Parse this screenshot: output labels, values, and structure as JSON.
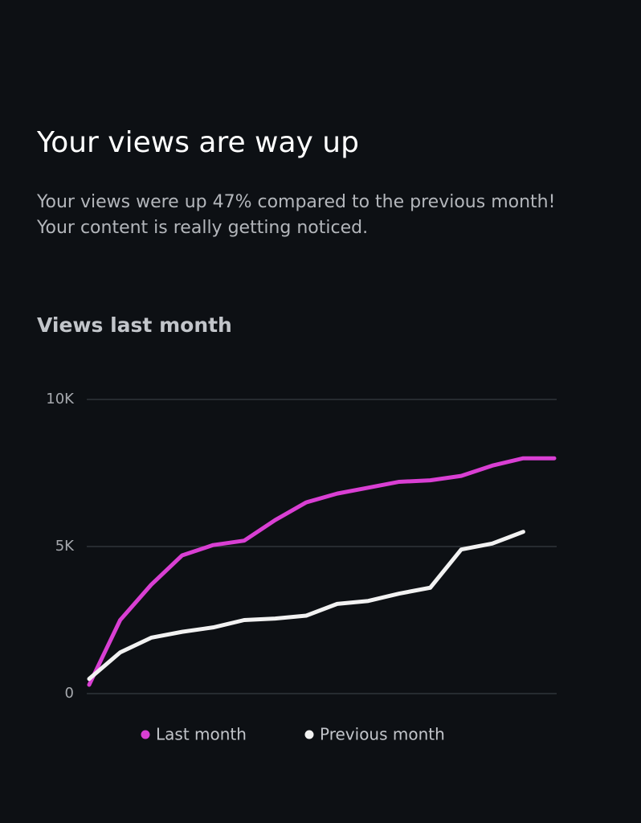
{
  "header": {
    "title": "Your views are way up",
    "description": [
      "Your views were up 47% compared to the previous month!",
      "Your content is really getting noticed."
    ]
  },
  "chart_data": {
    "type": "line",
    "title": "Views last month",
    "categories": [
      null,
      null,
      null,
      null,
      null,
      null,
      null,
      null,
      null,
      null,
      null,
      null,
      null,
      null,
      null,
      null
    ],
    "series": [
      {
        "name": "Last month",
        "color": "#d93fd3",
        "values": [
          300,
          2500,
          3700,
          4700,
          5050,
          5200,
          5900,
          6500,
          6800,
          7000,
          7200,
          7250,
          7400,
          7750,
          8000,
          8000
        ]
      },
      {
        "name": "Previous month",
        "color": "#f2f2f2",
        "values": [
          500,
          1400,
          1900,
          2100,
          2250,
          2500,
          2550,
          2650,
          3050,
          3150,
          3400,
          3600,
          4900,
          5100,
          5500,
          null
        ]
      }
    ],
    "ylim": [
      0,
      10000
    ],
    "yticks": [
      0,
      {
        "value": 5000,
        "label": "5K"
      },
      {
        "value": 10000,
        "label": "10K"
      }
    ],
    "grid": true,
    "legend": "bottom"
  }
}
